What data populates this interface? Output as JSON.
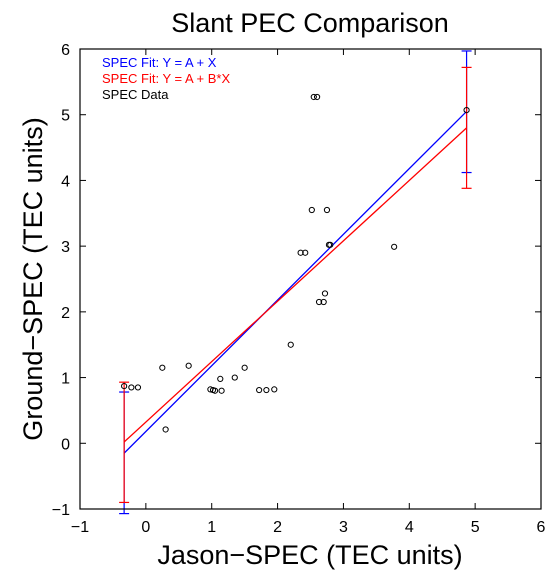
{
  "chart_data": {
    "type": "scatter",
    "title": "Slant PEC Comparison",
    "xlabel": "Jason−SPEC (TEC units)",
    "ylabel": "Ground−SPEC (TEC units)",
    "xlim": [
      -1,
      6
    ],
    "ylim": [
      -1,
      6
    ],
    "xticks": [
      -1,
      0,
      1,
      2,
      3,
      4,
      5,
      6
    ],
    "yticks": [
      -1,
      0,
      1,
      2,
      3,
      4,
      5,
      6
    ],
    "xtick_labels": [
      "−1",
      "0",
      "1",
      "2",
      "3",
      "4",
      "5",
      "6"
    ],
    "ytick_labels": [
      "−1",
      "0",
      "1",
      "2",
      "3",
      "4",
      "5",
      "6"
    ],
    "grid": false,
    "legend_position": "top-left",
    "series": [
      {
        "name": "SPEC Fit: Y = A + X",
        "kind": "line",
        "color": "#0000ff",
        "x": [
          -0.33,
          4.87
        ],
        "y": [
          -0.15,
          5.05
        ],
        "error_bars": [
          {
            "x": -0.33,
            "low": -1.07,
            "high": 0.78
          },
          {
            "x": 4.87,
            "low": 4.12,
            "high": 5.97
          }
        ]
      },
      {
        "name": "SPEC Fit: Y = A + B*X",
        "kind": "line",
        "color": "#ff0000",
        "x": [
          -0.33,
          4.87
        ],
        "y": [
          0.02,
          4.8
        ],
        "error_bars": [
          {
            "x": -0.33,
            "low": -0.9,
            "high": 0.93
          },
          {
            "x": 4.87,
            "low": 3.88,
            "high": 5.72
          }
        ]
      },
      {
        "name": "SPEC Data",
        "kind": "scatter",
        "color": "#000000",
        "x": [
          -0.33,
          -0.22,
          -0.12,
          0.25,
          0.3,
          0.65,
          0.98,
          1.02,
          1.05,
          1.13,
          1.15,
          1.35,
          1.5,
          1.72,
          1.83,
          1.95,
          2.2,
          2.35,
          2.42,
          2.52,
          2.55,
          2.6,
          2.63,
          2.7,
          2.72,
          2.75,
          2.78,
          2.8,
          3.77,
          4.87
        ],
        "y": [
          0.87,
          0.85,
          0.85,
          1.15,
          0.21,
          1.18,
          0.82,
          0.81,
          0.8,
          0.98,
          0.8,
          1.0,
          1.15,
          0.81,
          0.81,
          0.82,
          1.5,
          2.9,
          2.9,
          3.55,
          5.27,
          5.27,
          2.15,
          2.15,
          2.28,
          3.55,
          3.02,
          3.02,
          2.99,
          5.07
        ]
      }
    ]
  }
}
